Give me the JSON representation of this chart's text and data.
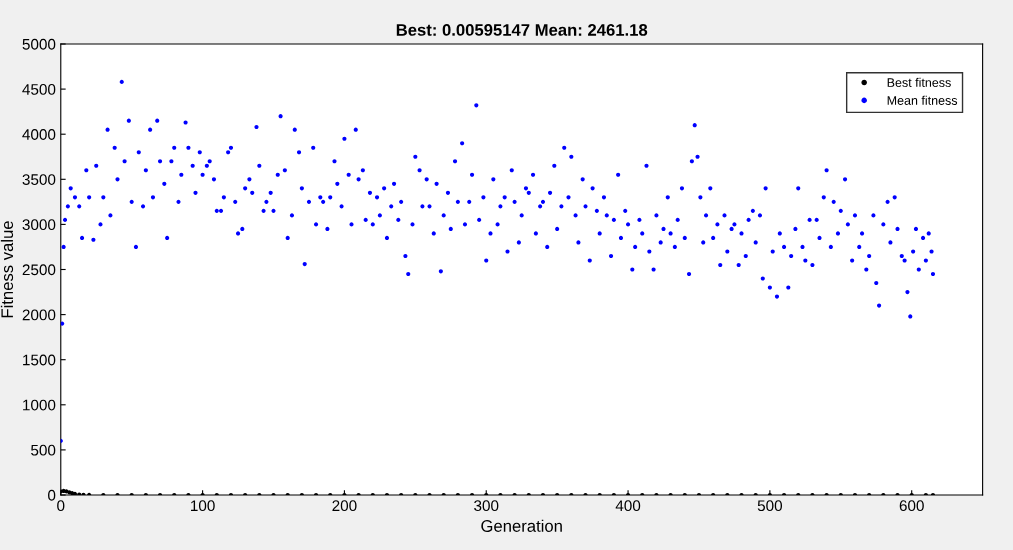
{
  "chart_data": {
    "type": "scatter",
    "title": "Best: 0.00595147 Mean: 2461.18",
    "xlabel": "Generation",
    "ylabel": "Fitness value",
    "xlim": [
      0,
      650
    ],
    "xticks": [
      0,
      100,
      200,
      300,
      400,
      500,
      600
    ],
    "ylim": [
      0,
      5000
    ],
    "yticks": [
      0,
      500,
      1000,
      1500,
      2000,
      2500,
      3000,
      3500,
      4000,
      4500,
      5000
    ],
    "grid": false,
    "legend": "top right",
    "marker": "circle",
    "series": [
      {
        "name": "Best fitness",
        "color": "#000000",
        "x": [
          0,
          2,
          4,
          6,
          8,
          10,
          13,
          16,
          20,
          30,
          40,
          50,
          60,
          70,
          80,
          90,
          100,
          110,
          120,
          130,
          140,
          150,
          160,
          170,
          180,
          190,
          200,
          210,
          220,
          230,
          240,
          250,
          260,
          270,
          280,
          290,
          300,
          310,
          320,
          330,
          340,
          350,
          360,
          370,
          380,
          390,
          400,
          410,
          420,
          430,
          440,
          450,
          460,
          470,
          480,
          490,
          500,
          510,
          520,
          530,
          540,
          550,
          560,
          570,
          580,
          590,
          600,
          610,
          615
        ],
        "values": [
          40,
          45,
          40,
          30,
          20,
          12,
          6,
          3,
          1,
          0,
          0,
          0,
          0,
          0,
          0,
          0,
          0,
          0,
          0,
          0,
          0,
          0,
          0,
          0,
          0,
          0,
          0,
          0,
          0,
          0,
          0,
          0,
          0,
          0,
          0,
          0,
          0,
          0,
          0,
          0,
          0,
          0,
          0,
          0,
          0,
          0,
          0,
          0,
          0,
          0,
          0,
          0,
          0,
          0,
          0,
          0,
          0,
          0,
          0,
          0,
          0,
          0,
          0,
          0,
          0,
          0,
          0,
          0,
          0
        ]
      },
      {
        "name": "Mean fitness",
        "color": "#0000ff",
        "x": [
          0,
          1,
          2,
          3,
          5,
          7,
          10,
          13,
          15,
          18,
          20,
          23,
          25,
          28,
          30,
          33,
          35,
          38,
          40,
          43,
          45,
          48,
          50,
          53,
          55,
          58,
          60,
          63,
          65,
          68,
          70,
          73,
          75,
          78,
          80,
          83,
          85,
          88,
          90,
          93,
          95,
          98,
          100,
          103,
          105,
          108,
          110,
          113,
          115,
          118,
          120,
          123,
          125,
          128,
          130,
          133,
          135,
          138,
          140,
          143,
          145,
          148,
          150,
          153,
          155,
          158,
          160,
          163,
          165,
          168,
          170,
          172,
          175,
          178,
          180,
          183,
          185,
          188,
          190,
          193,
          195,
          198,
          200,
          203,
          205,
          208,
          210,
          213,
          215,
          218,
          220,
          223,
          225,
          228,
          230,
          233,
          235,
          238,
          240,
          243,
          245,
          248,
          250,
          253,
          255,
          258,
          260,
          263,
          265,
          268,
          270,
          273,
          275,
          278,
          280,
          283,
          285,
          288,
          290,
          293,
          295,
          298,
          300,
          303,
          305,
          308,
          310,
          313,
          315,
          318,
          320,
          323,
          325,
          328,
          330,
          333,
          335,
          338,
          340,
          343,
          345,
          348,
          350,
          353,
          355,
          358,
          360,
          363,
          365,
          368,
          370,
          373,
          375,
          378,
          380,
          383,
          385,
          388,
          390,
          393,
          395,
          398,
          400,
          403,
          405,
          408,
          410,
          413,
          415,
          418,
          420,
          423,
          425,
          428,
          430,
          433,
          435,
          438,
          440,
          443,
          445,
          447,
          449,
          451,
          453,
          455,
          458,
          460,
          463,
          465,
          468,
          470,
          473,
          475,
          478,
          480,
          483,
          485,
          488,
          490,
          493,
          495,
          497,
          500,
          502,
          505,
          507,
          510,
          513,
          515,
          518,
          520,
          523,
          525,
          528,
          530,
          533,
          535,
          538,
          540,
          543,
          545,
          548,
          550,
          553,
          555,
          558,
          560,
          563,
          565,
          568,
          570,
          573,
          575,
          577,
          580,
          583,
          585,
          588,
          590,
          593,
          595,
          597,
          599,
          601,
          603,
          605,
          608,
          610,
          612,
          614,
          615
        ],
        "values": [
          600,
          1900,
          2750,
          3050,
          3200,
          3400,
          3300,
          3200,
          2850,
          3600,
          3300,
          2830,
          3650,
          3000,
          3300,
          4050,
          3100,
          3850,
          3500,
          4580,
          3700,
          4150,
          3250,
          2750,
          3800,
          3200,
          3600,
          4050,
          3300,
          4150,
          3700,
          3450,
          2850,
          3700,
          3850,
          3250,
          3550,
          4130,
          3850,
          3650,
          3350,
          3800,
          3550,
          3650,
          3700,
          3500,
          3150,
          3150,
          3300,
          3800,
          3850,
          3250,
          2900,
          2950,
          3400,
          3500,
          3350,
          4080,
          3650,
          3150,
          3250,
          3350,
          3150,
          3550,
          4200,
          3600,
          2850,
          3100,
          4050,
          3800,
          3400,
          2560,
          3250,
          3850,
          3000,
          3300,
          3250,
          2950,
          3300,
          3700,
          3450,
          3200,
          3950,
          3550,
          3000,
          4050,
          3500,
          3600,
          3050,
          3350,
          3000,
          3300,
          3100,
          3400,
          2850,
          3200,
          3450,
          3050,
          3250,
          2650,
          2450,
          3000,
          3750,
          3600,
          3200,
          3500,
          3200,
          2900,
          3450,
          2480,
          3100,
          3350,
          2950,
          3700,
          3250,
          3900,
          3000,
          3250,
          3550,
          4320,
          3050,
          3300,
          2600,
          2900,
          3500,
          3000,
          3200,
          3300,
          2700,
          3600,
          3250,
          2800,
          3100,
          3400,
          3350,
          3550,
          2900,
          3200,
          3250,
          2750,
          3350,
          3650,
          2950,
          3200,
          3850,
          3300,
          3750,
          3100,
          2800,
          3500,
          3200,
          2600,
          3400,
          3150,
          2900,
          3300,
          3100,
          2650,
          3050,
          3550,
          2850,
          3150,
          3000,
          2500,
          2750,
          3050,
          2900,
          3650,
          2700,
          2500,
          3100,
          2800,
          2950,
          3300,
          2900,
          2750,
          3050,
          3400,
          2850,
          2450,
          3700,
          4100,
          3750,
          3300,
          2800,
          3100,
          3400,
          2850,
          3000,
          2550,
          3100,
          2700,
          2950,
          3000,
          2550,
          2900,
          2650,
          3050,
          3150,
          2800,
          3100,
          2400,
          3400,
          2300,
          2700,
          2200,
          2900,
          2750,
          2300,
          2650,
          2950,
          3400,
          2750,
          2600,
          3050,
          2550,
          3050,
          2850,
          3300,
          3600,
          2750,
          3250,
          2900,
          3150,
          3500,
          3000,
          2600,
          3100,
          2750,
          2900,
          2500,
          2650,
          3100,
          2350,
          2100,
          3000,
          3250,
          2800,
          3300,
          2950,
          2650,
          2600,
          2250,
          1980,
          2700,
          2950,
          2500,
          2850,
          2600,
          2900,
          2700,
          2450
        ]
      }
    ]
  }
}
